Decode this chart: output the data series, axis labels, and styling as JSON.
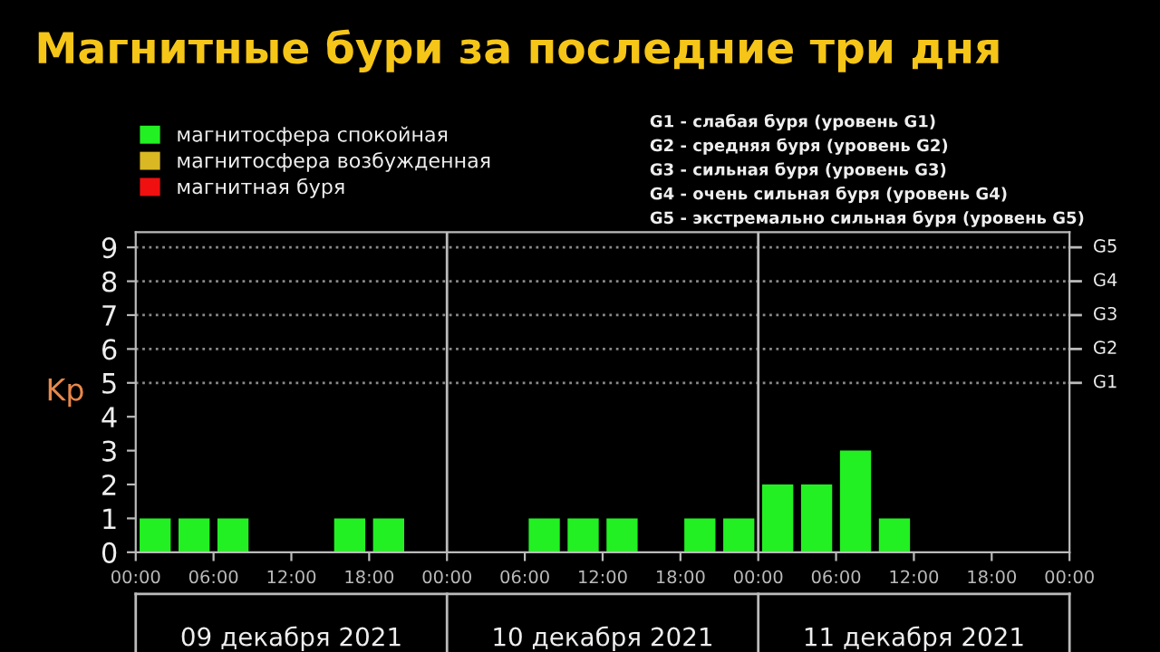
{
  "chart_data": {
    "type": "bar",
    "title": "Магнитные бури за последние три дня",
    "ylabel": "Kp",
    "x": [
      "2021-12-09T01:30",
      "2021-12-09T04:30",
      "2021-12-09T07:30",
      "2021-12-09T10:30",
      "2021-12-09T13:30",
      "2021-12-09T16:30",
      "2021-12-09T19:30",
      "2021-12-09T22:30",
      "2021-12-10T01:30",
      "2021-12-10T04:30",
      "2021-12-10T07:30",
      "2021-12-10T10:30",
      "2021-12-10T13:30",
      "2021-12-10T16:30",
      "2021-12-10T19:30",
      "2021-12-10T22:30",
      "2021-12-11T01:30",
      "2021-12-11T04:30",
      "2021-12-11T07:30",
      "2021-12-11T10:30"
    ],
    "series": [
      {
        "name": "магнитосфера спокойная",
        "color": "#22f022",
        "values": [
          1,
          1,
          1,
          0,
          0,
          1,
          1,
          0,
          0,
          0,
          1,
          1,
          1,
          0,
          1,
          1,
          2,
          2,
          3,
          1
        ]
      },
      {
        "name": "магнитосфера возбужденная",
        "color": "#d9b824",
        "values": [
          null,
          null,
          null,
          null,
          null,
          null,
          null,
          null,
          null,
          null,
          null,
          null,
          null,
          null,
          null,
          null,
          null,
          null,
          null,
          null
        ]
      },
      {
        "name": "магнитная буря",
        "color": "#f01010",
        "values": [
          null,
          null,
          null,
          null,
          null,
          null,
          null,
          null,
          null,
          null,
          null,
          null,
          null,
          null,
          null,
          null,
          null,
          null,
          null,
          null
        ]
      }
    ],
    "xlim": [
      "2021-12-09T00:00",
      "2021-12-12T00:00"
    ],
    "xticks": [
      {
        "value": "2021-12-09T00:00",
        "label": "00:00"
      },
      {
        "value": "2021-12-09T06:00",
        "label": "06:00"
      },
      {
        "value": "2021-12-09T12:00",
        "label": "12:00"
      },
      {
        "value": "2021-12-09T18:00",
        "label": "18:00"
      },
      {
        "value": "2021-12-10T00:00",
        "label": "00:00"
      },
      {
        "value": "2021-12-10T06:00",
        "label": "06:00"
      },
      {
        "value": "2021-12-10T12:00",
        "label": "12:00"
      },
      {
        "value": "2021-12-10T18:00",
        "label": "18:00"
      },
      {
        "value": "2021-12-11T00:00",
        "label": "00:00"
      },
      {
        "value": "2021-12-11T06:00",
        "label": "06:00"
      },
      {
        "value": "2021-12-11T12:00",
        "label": "12:00"
      },
      {
        "value": "2021-12-11T18:00",
        "label": "18:00"
      },
      {
        "value": "2021-12-12T00:00",
        "label": "00:00"
      }
    ],
    "ylim": [
      0,
      9.45
    ],
    "yticks": [
      0,
      1,
      2,
      3,
      4,
      5,
      6,
      7,
      8,
      9
    ],
    "ref_lines": [
      {
        "axis": "y",
        "value": 5,
        "label": "G1",
        "line_style": "dotted",
        "color": "#8a8a8a"
      },
      {
        "axis": "y",
        "value": 6,
        "label": "G2",
        "line_style": "dotted",
        "color": "#8a8a8a"
      },
      {
        "axis": "y",
        "value": 7,
        "label": "G3",
        "line_style": "dotted",
        "color": "#8a8a8a"
      },
      {
        "axis": "y",
        "value": 8,
        "label": "G4",
        "line_style": "dotted",
        "color": "#8a8a8a"
      },
      {
        "axis": "y",
        "value": 9,
        "label": "G5",
        "line_style": "dotted",
        "color": "#8a8a8a"
      },
      {
        "axis": "x",
        "value": "2021-12-10T00:00",
        "label": null,
        "line_style": "solid",
        "color": "#bbbbbb"
      },
      {
        "axis": "x",
        "value": "2021-12-11T00:00",
        "label": null,
        "line_style": "solid",
        "color": "#bbbbbb"
      }
    ],
    "annotations": [
      "09 декабря 2021",
      "10 декабря 2021",
      "11 декабря 2021",
      "G1 - слабая буря (уровень G1)",
      "G2 - средняя буря (уровень G2)",
      "G3 - сильная буря (уровень G3)",
      "G4 - очень сильная буря (уровень G4)",
      "G5 - экстремально сильная буря (уровень G5)"
    ],
    "grid": false,
    "legend": "top left"
  }
}
